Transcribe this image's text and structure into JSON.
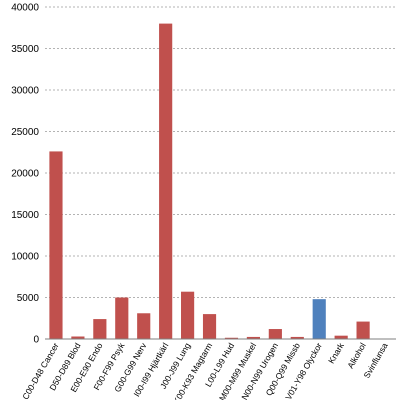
{
  "chart_data": {
    "type": "bar",
    "title": "",
    "xlabel": "",
    "ylabel": "",
    "ylim": [
      0,
      40000
    ],
    "yticks": [
      0,
      5000,
      10000,
      15000,
      20000,
      25000,
      30000,
      35000,
      40000
    ],
    "grid": true,
    "legend": "none",
    "categories": [
      "C00-D48 Cancer",
      "D50-D89 Blod",
      "E00-E90 Endo",
      "F00-F99 Psyk",
      "G00-G99 Nerv",
      "I00-I99 Hjärtkärl",
      "J00-J99 Lung",
      "K00-K93 Magtarm",
      "L00-L99 Hud",
      "M00-M99 Muskel",
      "N00-N99 Urogen",
      "Q00-Q99 Missb",
      "V01-Y98 Olyckor",
      "Knark",
      "Alkohol",
      "Svinflunsa"
    ],
    "values": [
      22600,
      300,
      2400,
      5000,
      3100,
      38000,
      5700,
      3000,
      150,
      250,
      1200,
      250,
      4800,
      400,
      2100,
      0
    ],
    "bar_colors": [
      "#c0504d",
      "#c0504d",
      "#c0504d",
      "#c0504d",
      "#c0504d",
      "#c0504d",
      "#c0504d",
      "#c0504d",
      "#c0504d",
      "#c0504d",
      "#c0504d",
      "#c0504d",
      "#4f81bd",
      "#c0504d",
      "#c0504d",
      "#c0504d"
    ]
  }
}
